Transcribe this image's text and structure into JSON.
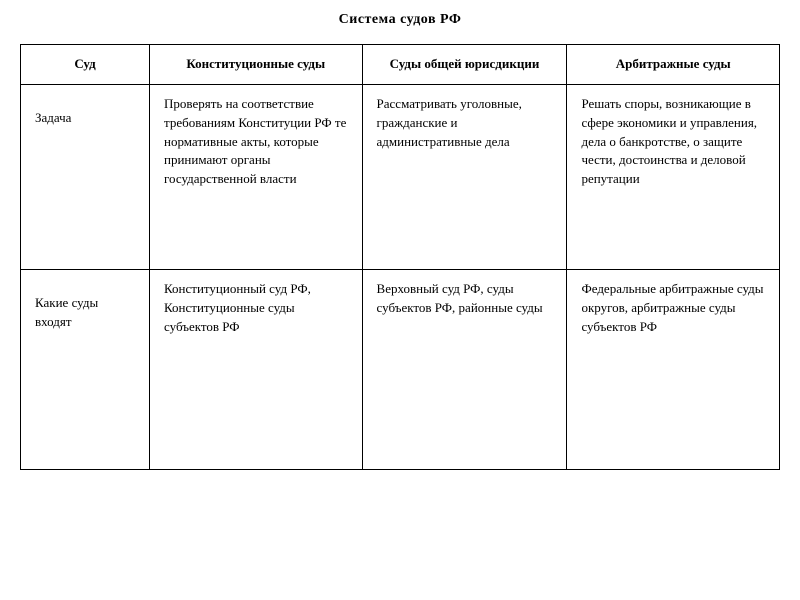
{
  "title": "Система судов РФ",
  "table": {
    "columns": [
      {
        "label": "Суд",
        "widthClass": "col-0"
      },
      {
        "label": "Конституционные суды",
        "widthClass": "col-1"
      },
      {
        "label": "Суды общей юрисдикции",
        "widthClass": "col-2"
      },
      {
        "label": "Арбитражные суды",
        "widthClass": "col-3"
      }
    ],
    "rows": [
      {
        "label": "Задача",
        "cells": [
          "Проверять на соответствие требованиям Конституции РФ те нормативные акты, которые принимают органы государственной власти",
          "Рассматривать уголовные, гражданские и административные дела",
          "Решать споры, возникающие в сфере экономики и управления, дела о банкротстве, о защите чести, достоинства и деловой репутации"
        ]
      },
      {
        "label": "Какие суды входят",
        "cells": [
          "Конституционный суд РФ, Конституционные суды субъектов РФ",
          "Верховный суд РФ, суды субъектов РФ, районные суды",
          "Федеральные арбитражные суды округов, арбитражные суды субъектов РФ"
        ]
      }
    ],
    "border_color": "#000000",
    "background_color": "#ffffff",
    "text_color": "#000000",
    "title_fontsize": 14,
    "cell_fontsize": 13,
    "font_family": "serif"
  }
}
